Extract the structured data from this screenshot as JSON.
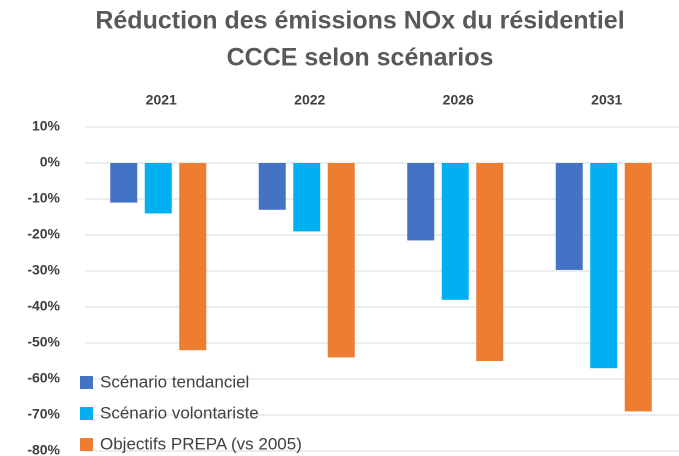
{
  "chart_data": {
    "type": "bar",
    "title": [
      "Réduction des émissions NOx du résidentiel",
      "CCCE selon scénarios"
    ],
    "categories": [
      "2021",
      "2022",
      "2026",
      "2031"
    ],
    "series": [
      {
        "name": "Scénario tendanciel",
        "color": "#4472c4",
        "values": [
          -11,
          -13,
          -21.5,
          -29.7
        ]
      },
      {
        "name": "Scénario volontariste",
        "color": "#00b0f0",
        "values": [
          -14,
          -19,
          -38,
          -57
        ]
      },
      {
        "name": "Objectifs PREPA (vs 2005)",
        "color": "#ed7d31",
        "values": [
          -52,
          -54,
          -55,
          -69
        ]
      }
    ],
    "ylim": [
      -80,
      10
    ],
    "yticks": [
      {
        "value": 10,
        "label": "10%"
      },
      {
        "value": 0,
        "label": "0%"
      },
      {
        "value": -10,
        "label": "-10%"
      },
      {
        "value": -20,
        "label": "-20%"
      },
      {
        "value": -30,
        "label": "-30%"
      },
      {
        "value": -40,
        "label": "-40%"
      },
      {
        "value": -50,
        "label": "-50%"
      },
      {
        "value": -60,
        "label": "-60%"
      },
      {
        "value": -70,
        "label": "-70%"
      },
      {
        "value": -80,
        "label": "-80%"
      }
    ],
    "grid": true,
    "legend": "lower left"
  }
}
